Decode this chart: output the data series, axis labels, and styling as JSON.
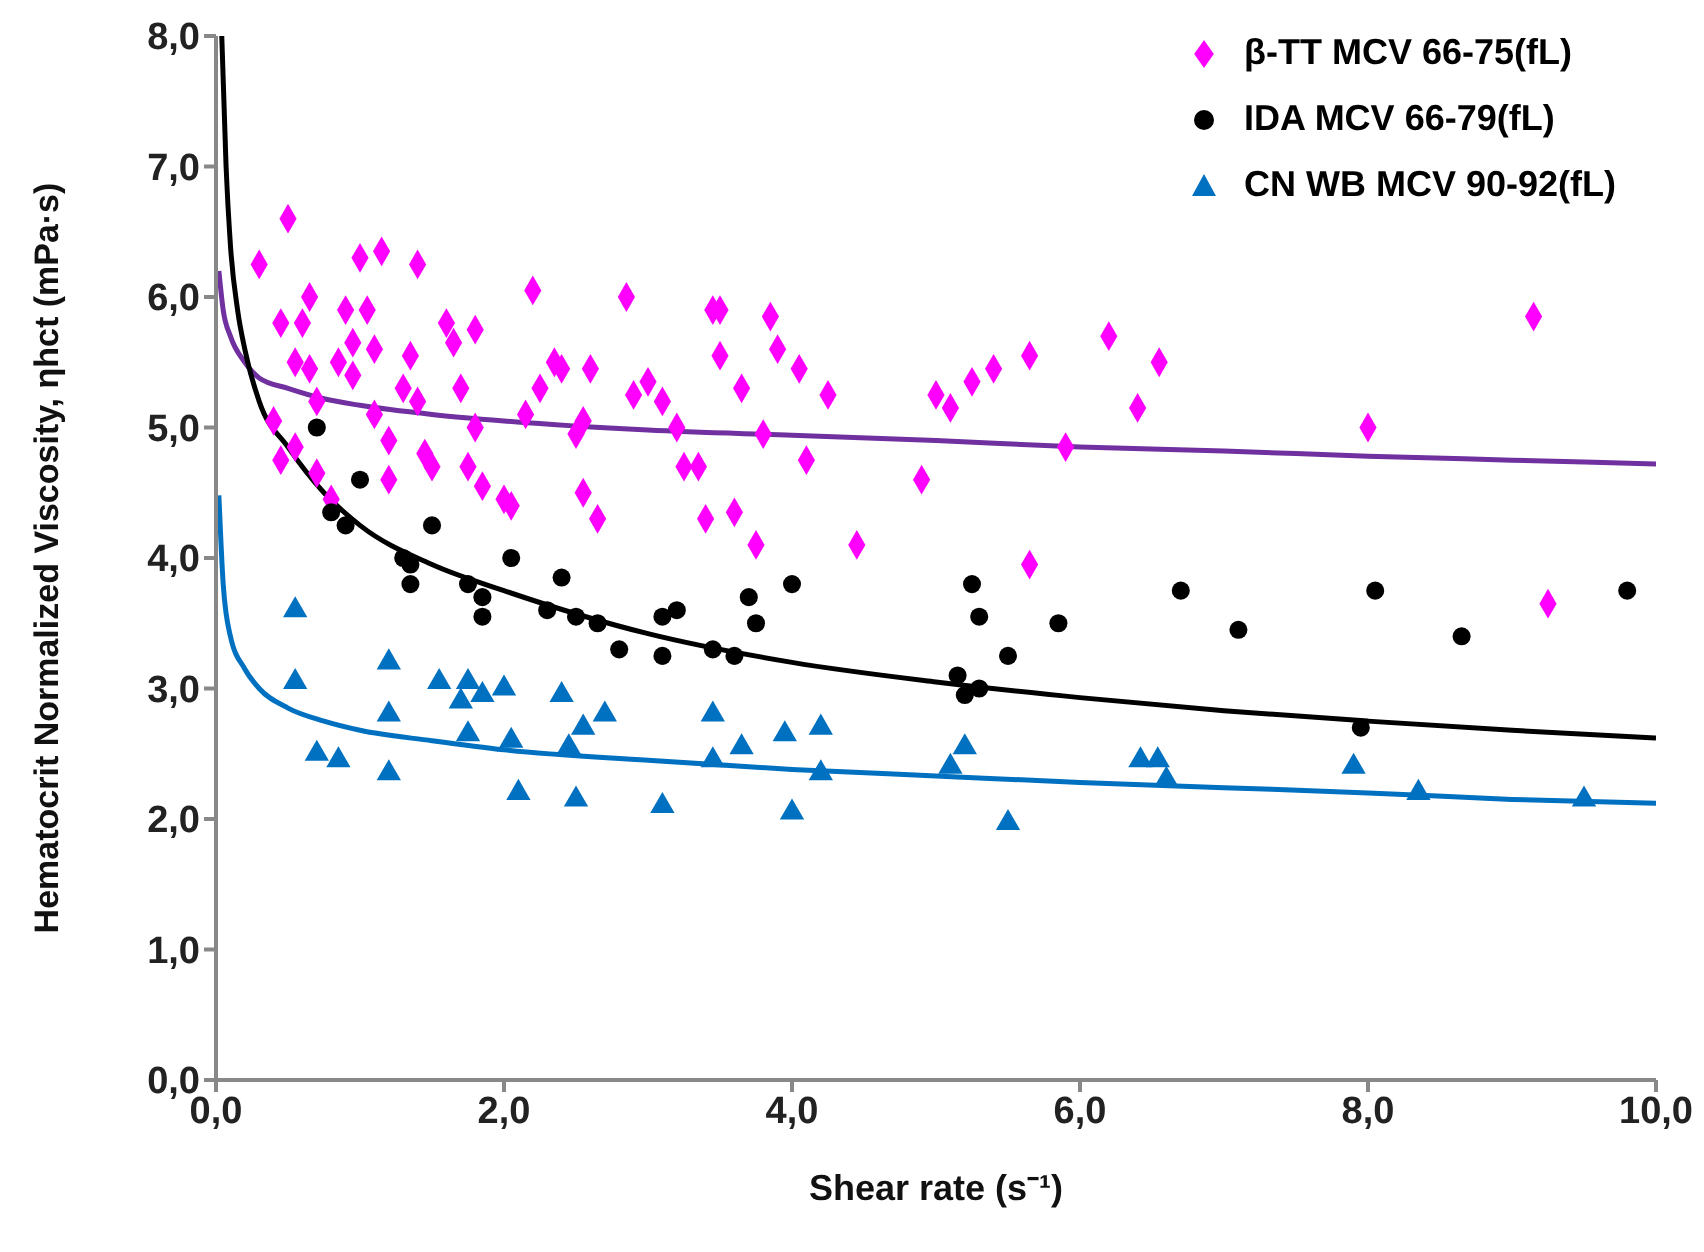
{
  "chart_data": {
    "type": "scatter",
    "xlabel": "Shear   rate (s⁻¹)",
    "ylabel": "Hematocrit Normalized Viscosity, ηhct (mPa·s)",
    "xlim": [
      0,
      10
    ],
    "ylim": [
      0,
      8
    ],
    "xticks": [
      {
        "value": 0,
        "label": "0,0"
      },
      {
        "value": 2,
        "label": "2,0"
      },
      {
        "value": 4,
        "label": "4,0"
      },
      {
        "value": 6,
        "label": "6,0"
      },
      {
        "value": 8,
        "label": "8,0"
      },
      {
        "value": 10,
        "label": "10,0"
      }
    ],
    "yticks": [
      {
        "value": 0,
        "label": "0,0"
      },
      {
        "value": 1,
        "label": "1,0"
      },
      {
        "value": 2,
        "label": "2,0"
      },
      {
        "value": 3,
        "label": "3,0"
      },
      {
        "value": 4,
        "label": "4,0"
      },
      {
        "value": 5,
        "label": "5,0"
      },
      {
        "value": 6,
        "label": "6,0"
      },
      {
        "value": 7,
        "label": "7,0"
      },
      {
        "value": 8,
        "label": "8,0"
      }
    ],
    "grid": false,
    "legend": "top right",
    "series": [
      {
        "name": "β-TT MCV 66-75(fL)",
        "color": "#ff00ff",
        "marker": "diamond",
        "x": [
          0.3,
          0.5,
          0.45,
          0.55,
          0.6,
          0.65,
          0.65,
          0.7,
          0.4,
          0.45,
          0.55,
          0.7,
          0.8,
          0.85,
          0.9,
          0.95,
          0.95,
          1.0,
          1.05,
          1.1,
          1.15,
          1.1,
          1.2,
          1.2,
          1.3,
          1.35,
          1.4,
          1.4,
          1.45,
          1.5,
          1.6,
          1.65,
          1.7,
          1.75,
          1.8,
          1.8,
          1.85,
          2.0,
          2.05,
          2.15,
          2.2,
          2.25,
          2.35,
          2.4,
          2.5,
          2.55,
          2.55,
          2.6,
          2.65,
          2.85,
          2.9,
          3.0,
          3.1,
          3.2,
          3.25,
          3.35,
          3.4,
          3.45,
          3.5,
          3.5,
          3.6,
          3.65,
          3.75,
          3.8,
          3.85,
          3.9,
          4.05,
          4.1,
          4.25,
          4.45,
          4.9,
          5.0,
          5.1,
          5.25,
          5.4,
          5.65,
          5.9,
          5.65,
          6.2,
          6.55,
          6.4,
          8.0,
          9.15,
          9.25
        ],
        "values": [
          6.25,
          6.6,
          5.8,
          5.5,
          5.8,
          6.0,
          5.45,
          5.2,
          5.05,
          4.75,
          4.85,
          4.65,
          4.45,
          5.5,
          5.9,
          5.65,
          5.4,
          6.3,
          5.9,
          5.6,
          6.35,
          5.1,
          4.9,
          4.6,
          5.3,
          5.55,
          6.25,
          5.2,
          4.8,
          4.7,
          5.8,
          5.65,
          5.3,
          4.7,
          5.75,
          5.0,
          4.55,
          4.45,
          4.4,
          5.1,
          6.05,
          5.3,
          5.5,
          5.45,
          4.95,
          4.5,
          5.05,
          5.45,
          4.3,
          6.0,
          5.25,
          5.35,
          5.2,
          5.0,
          4.7,
          4.7,
          4.3,
          5.9,
          5.9,
          5.55,
          4.35,
          5.3,
          4.1,
          4.95,
          5.85,
          5.6,
          5.45,
          4.75,
          5.25,
          4.1,
          4.6,
          5.25,
          5.15,
          5.35,
          5.45,
          5.55,
          4.85,
          3.95,
          5.7,
          5.5,
          5.15,
          5.0,
          5.85,
          3.65
        ]
      },
      {
        "name": "IDA MCV 66-79(fL)",
        "color": "#000000",
        "marker": "circle",
        "x": [
          0.7,
          0.8,
          0.9,
          1.0,
          1.3,
          1.35,
          1.35,
          1.5,
          1.75,
          1.85,
          1.85,
          2.05,
          2.3,
          2.4,
          2.5,
          2.65,
          2.8,
          3.1,
          3.1,
          3.2,
          3.45,
          3.6,
          3.7,
          3.75,
          4.0,
          5.15,
          5.2,
          5.25,
          5.3,
          5.3,
          5.5,
          5.85,
          6.7,
          7.1,
          7.95,
          8.05,
          8.65,
          9.8
        ],
        "values": [
          5.0,
          4.35,
          4.25,
          4.6,
          4.0,
          3.95,
          3.8,
          4.25,
          3.8,
          3.7,
          3.55,
          4.0,
          3.6,
          3.85,
          3.55,
          3.5,
          3.3,
          3.55,
          3.25,
          3.6,
          3.3,
          3.25,
          3.7,
          3.5,
          3.8,
          3.1,
          2.95,
          3.8,
          3.55,
          3.0,
          3.25,
          3.5,
          3.75,
          3.45,
          2.7,
          3.75,
          3.4,
          3.75
        ]
      },
      {
        "name": "CN WB MCV 90-92(fL)",
        "color": "#0070c0",
        "marker": "triangle",
        "x": [
          0.55,
          0.55,
          0.7,
          0.85,
          1.2,
          1.2,
          1.2,
          1.55,
          1.7,
          1.75,
          1.75,
          1.85,
          2.0,
          2.05,
          2.1,
          2.4,
          2.45,
          2.5,
          2.55,
          2.7,
          3.1,
          3.45,
          3.45,
          3.65,
          3.95,
          4.0,
          4.2,
          4.2,
          5.1,
          5.2,
          5.5,
          6.42,
          6.54,
          6.6,
          7.9,
          8.35,
          9.5
        ],
        "values": [
          3.6,
          3.05,
          2.5,
          2.45,
          3.2,
          2.8,
          2.35,
          3.05,
          2.9,
          3.05,
          2.65,
          2.95,
          3.0,
          2.6,
          2.2,
          2.95,
          2.55,
          2.15,
          2.7,
          2.8,
          2.1,
          2.8,
          2.45,
          2.55,
          2.65,
          2.05,
          2.7,
          2.35,
          2.4,
          2.55,
          1.97,
          2.45,
          2.45,
          2.3,
          2.4,
          2.2,
          2.15
        ]
      },
      {
        "type": "line",
        "color": "#7030a0",
        "x": [
          0.02,
          0.05,
          0.1,
          0.2,
          0.3,
          0.5,
          0.75,
          1,
          1.5,
          2,
          3,
          4,
          5,
          6,
          7,
          8,
          9,
          10
        ],
        "values": [
          6.2,
          5.9,
          5.7,
          5.5,
          5.38,
          5.3,
          5.22,
          5.17,
          5.1,
          5.05,
          4.98,
          4.94,
          4.9,
          4.85,
          4.82,
          4.78,
          4.75,
          4.72
        ]
      },
      {
        "type": "line",
        "color": "#000000",
        "x": [
          0.04,
          0.07,
          0.1,
          0.15,
          0.2,
          0.3,
          0.5,
          0.75,
          1,
          1.5,
          2,
          3,
          4,
          5,
          6,
          7,
          8,
          9,
          10
        ],
        "values": [
          8.0,
          7.0,
          6.4,
          5.9,
          5.6,
          5.2,
          4.85,
          4.5,
          4.25,
          3.95,
          3.75,
          3.42,
          3.2,
          3.05,
          2.93,
          2.83,
          2.75,
          2.68,
          2.62
        ]
      },
      {
        "type": "line",
        "color": "#0070c0",
        "x": [
          0.02,
          0.05,
          0.1,
          0.2,
          0.3,
          0.5,
          0.75,
          1,
          1.5,
          2,
          3,
          4,
          5,
          6,
          7,
          8,
          9,
          10
        ],
        "values": [
          4.48,
          3.8,
          3.4,
          3.15,
          3.0,
          2.85,
          2.75,
          2.68,
          2.6,
          2.53,
          2.45,
          2.38,
          2.33,
          2.28,
          2.24,
          2.2,
          2.15,
          2.12
        ]
      }
    ]
  }
}
